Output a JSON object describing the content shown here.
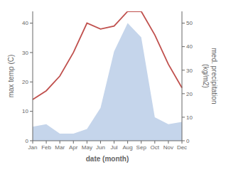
{
  "chart_data": {
    "type": "line",
    "categories": [
      "Jan",
      "Feb",
      "Mar",
      "Apr",
      "May",
      "Jun",
      "Jul",
      "Aug",
      "Sep",
      "Oct",
      "Nov",
      "Dec"
    ],
    "series": [
      {
        "type": "area",
        "color": "#c5d5eb",
        "axis": "y2",
        "values": [
          6,
          7,
          3,
          3,
          5,
          14,
          38,
          50,
          44,
          10,
          7,
          8
        ]
      },
      {
        "type": "line",
        "color": "#c0504d",
        "values": [
          14,
          17,
          22,
          30,
          40,
          38,
          39,
          44,
          44,
          36,
          26,
          18
        ]
      }
    ],
    "xlabel": "date (month)",
    "ylabel": "max temp (C)",
    "y2label": "med. precipitation\n(kg/m2)",
    "ylim": [
      0,
      44
    ],
    "yticks": [
      0,
      10,
      20,
      30,
      40
    ],
    "y2lim": [
      0,
      55
    ],
    "y2ticks": [
      0,
      10,
      20,
      30,
      40,
      50
    ],
    "grid": false
  }
}
